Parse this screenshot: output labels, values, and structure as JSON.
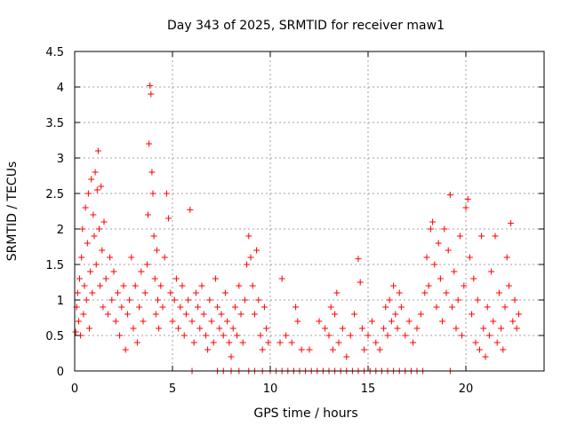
{
  "chart_data": {
    "type": "scatter",
    "title": "Day 343 of 2025, SRMTID for receiver maw1",
    "xlabel": "GPS time / hours",
    "ylabel": "SRMTID / TECUs",
    "xlim": [
      0,
      24
    ],
    "ylim": [
      0,
      4.5
    ],
    "xticks": [
      0,
      5,
      10,
      15,
      20
    ],
    "xtick_labels": [
      "0",
      "5",
      "10",
      "15",
      "20"
    ],
    "yticks": [
      0,
      0.5,
      1,
      1.5,
      2,
      2.5,
      3,
      3.5,
      4,
      4.5
    ],
    "ytick_labels": [
      "0",
      "0.5",
      "1",
      "1.5",
      "2",
      "2.5",
      "3",
      "3.5",
      "4",
      "4.5"
    ],
    "grid": true,
    "marker": "+",
    "color": "#ff0000",
    "series": [
      {
        "name": "SRMTID",
        "points": [
          [
            0.05,
            0.55
          ],
          [
            0.1,
            0.9
          ],
          [
            0.15,
            1.1
          ],
          [
            0.2,
            0.7
          ],
          [
            0.25,
            1.3
          ],
          [
            0.3,
            0.5
          ],
          [
            0.35,
            1.6
          ],
          [
            0.4,
            2.0
          ],
          [
            0.45,
            0.8
          ],
          [
            0.5,
            1.2
          ],
          [
            0.55,
            2.3
          ],
          [
            0.6,
            1.0
          ],
          [
            0.65,
            1.8
          ],
          [
            0.7,
            2.5
          ],
          [
            0.75,
            0.6
          ],
          [
            0.8,
            1.4
          ],
          [
            0.85,
            2.7
          ],
          [
            0.9,
            1.1
          ],
          [
            0.95,
            2.2
          ],
          [
            1.0,
            1.9
          ],
          [
            1.05,
            2.8
          ],
          [
            1.1,
            1.5
          ],
          [
            1.15,
            2.55
          ],
          [
            1.2,
            3.1
          ],
          [
            1.25,
            2.0
          ],
          [
            1.3,
            1.2
          ],
          [
            1.35,
            2.6
          ],
          [
            1.4,
            1.7
          ],
          [
            1.45,
            0.9
          ],
          [
            1.5,
            2.1
          ],
          [
            1.6,
            1.3
          ],
          [
            1.7,
            0.8
          ],
          [
            1.8,
            1.6
          ],
          [
            1.9,
            1.0
          ],
          [
            2.0,
            1.4
          ],
          [
            2.1,
            0.7
          ],
          [
            2.2,
            1.1
          ],
          [
            2.3,
            0.5
          ],
          [
            2.4,
            0.9
          ],
          [
            2.5,
            1.2
          ],
          [
            2.6,
            0.3
          ],
          [
            2.7,
            0.8
          ],
          [
            2.8,
            1.0
          ],
          [
            2.9,
            1.6
          ],
          [
            3.0,
            0.6
          ],
          [
            3.1,
            1.2
          ],
          [
            3.2,
            0.4
          ],
          [
            3.3,
            0.9
          ],
          [
            3.4,
            1.4
          ],
          [
            3.5,
            0.7
          ],
          [
            3.6,
            1.1
          ],
          [
            3.7,
            1.5
          ],
          [
            3.75,
            2.2
          ],
          [
            3.8,
            3.2
          ],
          [
            3.85,
            4.02
          ],
          [
            3.9,
            3.9
          ],
          [
            3.95,
            2.8
          ],
          [
            4.0,
            2.5
          ],
          [
            4.05,
            1.9
          ],
          [
            4.1,
            1.3
          ],
          [
            4.15,
            0.8
          ],
          [
            4.2,
            1.7
          ],
          [
            4.25,
            1.0
          ],
          [
            4.3,
            0.6
          ],
          [
            4.4,
            1.2
          ],
          [
            4.5,
            0.9
          ],
          [
            4.6,
            1.6
          ],
          [
            4.7,
            2.5
          ],
          [
            4.8,
            2.15
          ],
          [
            4.9,
            1.1
          ],
          [
            5.0,
            0.7
          ],
          [
            5.1,
            1.0
          ],
          [
            5.2,
            1.3
          ],
          [
            5.3,
            0.6
          ],
          [
            5.4,
            0.9
          ],
          [
            5.5,
            1.2
          ],
          [
            5.6,
            0.5
          ],
          [
            5.7,
            0.8
          ],
          [
            5.8,
            1.0
          ],
          [
            5.9,
            2.27
          ],
          [
            6.0,
            0.7
          ],
          [
            6.1,
            0.4
          ],
          [
            6.2,
            1.1
          ],
          [
            6.3,
            0.9
          ],
          [
            6.4,
            0.6
          ],
          [
            6.5,
            1.2
          ],
          [
            6.6,
            0.8
          ],
          [
            6.7,
            0.5
          ],
          [
            6.8,
            0.3
          ],
          [
            6.9,
            1.0
          ],
          [
            7.0,
            0.7
          ],
          [
            7.1,
            0.4
          ],
          [
            7.2,
            1.3
          ],
          [
            7.3,
            0.9
          ],
          [
            7.4,
            0.6
          ],
          [
            7.5,
            0.8
          ],
          [
            7.6,
            0.5
          ],
          [
            7.7,
            1.1
          ],
          [
            7.8,
            0.7
          ],
          [
            7.9,
            0.4
          ],
          [
            8.0,
            0.2
          ],
          [
            8.1,
            0.6
          ],
          [
            8.2,
            0.9
          ],
          [
            8.3,
            0.5
          ],
          [
            8.4,
            1.2
          ],
          [
            8.5,
            0.8
          ],
          [
            8.6,
            0.4
          ],
          [
            8.7,
            1.0
          ],
          [
            8.8,
            1.5
          ],
          [
            8.9,
            1.9
          ],
          [
            9.0,
            1.6
          ],
          [
            9.1,
            1.2
          ],
          [
            9.2,
            0.8
          ],
          [
            9.3,
            1.7
          ],
          [
            9.4,
            1.0
          ],
          [
            9.5,
            0.5
          ],
          [
            9.6,
            0.3
          ],
          [
            9.7,
            0.9
          ],
          [
            9.8,
            0.6
          ],
          [
            9.9,
            0.4
          ],
          [
            10.5,
            0.4
          ],
          [
            10.6,
            1.3
          ],
          [
            10.8,
            0.5
          ],
          [
            11.1,
            0.4
          ],
          [
            11.3,
            0.9
          ],
          [
            11.4,
            0.7
          ],
          [
            11.6,
            0.3
          ],
          [
            12.0,
            0.3
          ],
          [
            12.5,
            0.7
          ],
          [
            12.8,
            0.6
          ],
          [
            13.0,
            0.5
          ],
          [
            13.1,
            0.9
          ],
          [
            13.2,
            0.3
          ],
          [
            13.3,
            0.8
          ],
          [
            13.4,
            1.1
          ],
          [
            13.5,
            0.4
          ],
          [
            13.7,
            0.6
          ],
          [
            13.9,
            0.2
          ],
          [
            14.1,
            0.5
          ],
          [
            14.3,
            0.8
          ],
          [
            14.5,
            1.58
          ],
          [
            14.6,
            1.25
          ],
          [
            14.7,
            0.6
          ],
          [
            14.8,
            0.3
          ],
          [
            15.0,
            0.5
          ],
          [
            15.2,
            0.7
          ],
          [
            15.4,
            0.4
          ],
          [
            15.6,
            0.3
          ],
          [
            15.8,
            0.6
          ],
          [
            15.9,
            0.9
          ],
          [
            16.0,
            0.5
          ],
          [
            16.1,
            1.0
          ],
          [
            16.2,
            0.7
          ],
          [
            16.3,
            1.2
          ],
          [
            16.4,
            0.8
          ],
          [
            16.5,
            0.6
          ],
          [
            16.6,
            1.1
          ],
          [
            16.7,
            0.9
          ],
          [
            16.9,
            0.5
          ],
          [
            17.1,
            0.7
          ],
          [
            17.3,
            0.4
          ],
          [
            17.5,
            0.6
          ],
          [
            17.7,
            0.8
          ],
          [
            17.9,
            1.1
          ],
          [
            18.0,
            1.6
          ],
          [
            18.1,
            1.2
          ],
          [
            18.2,
            2.0
          ],
          [
            18.3,
            2.1
          ],
          [
            18.4,
            1.5
          ],
          [
            18.5,
            0.9
          ],
          [
            18.6,
            1.8
          ],
          [
            18.7,
            1.3
          ],
          [
            18.8,
            0.7
          ],
          [
            18.9,
            2.0
          ],
          [
            19.0,
            1.1
          ],
          [
            19.1,
            1.7
          ],
          [
            19.2,
            2.48
          ],
          [
            19.3,
            0.9
          ],
          [
            19.4,
            1.4
          ],
          [
            19.5,
            0.6
          ],
          [
            19.6,
            1.0
          ],
          [
            19.7,
            1.9
          ],
          [
            19.8,
            0.5
          ],
          [
            19.9,
            1.2
          ],
          [
            20.0,
            2.3
          ],
          [
            20.1,
            2.42
          ],
          [
            20.2,
            1.6
          ],
          [
            20.3,
            0.8
          ],
          [
            20.4,
            1.3
          ],
          [
            20.5,
            0.4
          ],
          [
            20.6,
            1.0
          ],
          [
            20.7,
            0.3
          ],
          [
            20.8,
            1.9
          ],
          [
            20.9,
            0.6
          ],
          [
            21.0,
            0.2
          ],
          [
            21.1,
            0.9
          ],
          [
            21.2,
            0.5
          ],
          [
            21.3,
            1.4
          ],
          [
            21.4,
            0.7
          ],
          [
            21.5,
            1.9
          ],
          [
            21.6,
            0.4
          ],
          [
            21.7,
            1.1
          ],
          [
            21.8,
            0.6
          ],
          [
            21.9,
            0.3
          ],
          [
            22.0,
            0.9
          ],
          [
            22.1,
            1.6
          ],
          [
            22.2,
            1.2
          ],
          [
            22.3,
            2.08
          ],
          [
            22.4,
            0.7
          ],
          [
            22.5,
            1.0
          ],
          [
            22.6,
            0.6
          ],
          [
            22.7,
            0.8
          ],
          [
            6.0,
            0.0
          ],
          [
            7.3,
            0.0
          ],
          [
            7.6,
            0.0
          ],
          [
            8.0,
            0.0
          ],
          [
            8.4,
            0.0
          ],
          [
            8.9,
            0.0
          ],
          [
            9.2,
            0.0
          ],
          [
            9.6,
            0.0
          ],
          [
            10.0,
            0.0
          ],
          [
            10.3,
            0.0
          ],
          [
            10.6,
            0.0
          ],
          [
            10.9,
            0.0
          ],
          [
            11.2,
            0.0
          ],
          [
            11.5,
            0.0
          ],
          [
            11.8,
            0.0
          ],
          [
            12.1,
            0.0
          ],
          [
            12.4,
            0.0
          ],
          [
            12.7,
            0.0
          ],
          [
            13.0,
            0.0
          ],
          [
            13.3,
            0.0
          ],
          [
            13.6,
            0.0
          ],
          [
            13.9,
            0.0
          ],
          [
            14.2,
            0.0
          ],
          [
            14.5,
            0.0
          ],
          [
            14.8,
            0.0
          ],
          [
            15.1,
            0.0
          ],
          [
            15.4,
            0.0
          ],
          [
            15.7,
            0.0
          ],
          [
            16.0,
            0.0
          ],
          [
            16.3,
            0.0
          ],
          [
            16.6,
            0.0
          ],
          [
            16.9,
            0.0
          ],
          [
            17.2,
            0.0
          ],
          [
            17.5,
            0.0
          ],
          [
            17.8,
            0.0
          ],
          [
            19.2,
            0.0
          ]
        ]
      }
    ]
  }
}
